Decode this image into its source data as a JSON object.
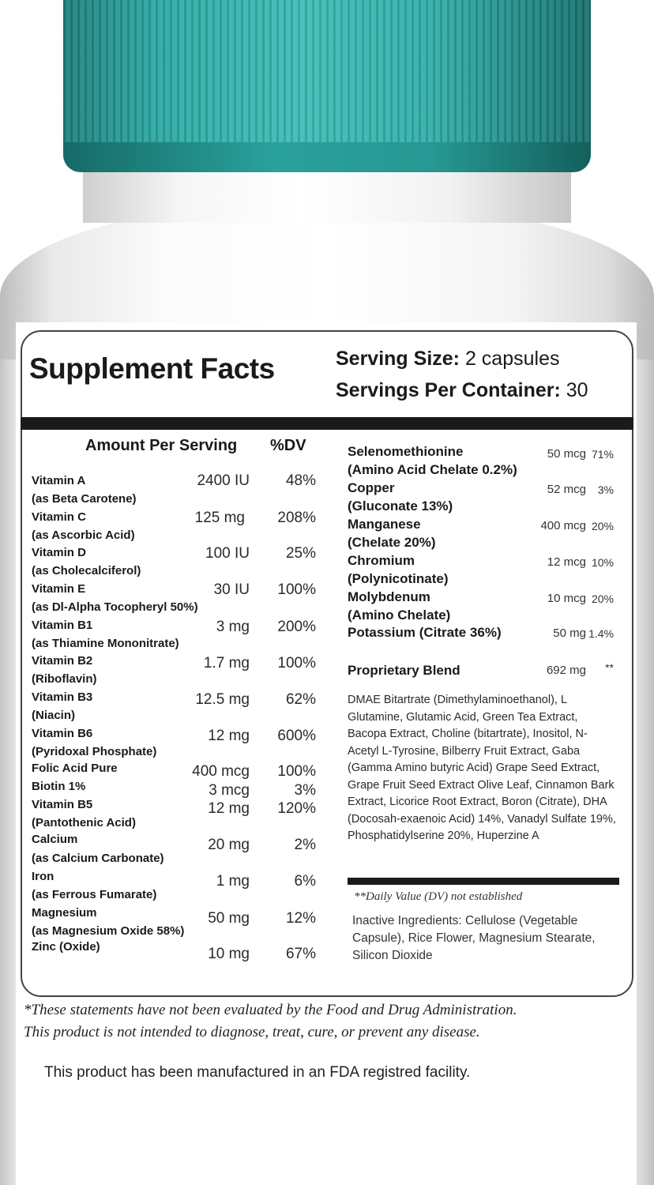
{
  "label": {
    "title": "Supplement Facts",
    "serving_size_label": "Serving Size:",
    "serving_size_value": "2 capsules",
    "servings_label": "Servings Per Container:",
    "servings_value": "30",
    "header_amount": "Amount Per Serving",
    "header_dv": "%DV"
  },
  "left_nutrients": [
    {
      "name": "Vitamin A",
      "sub": "(as Beta Carotene)",
      "amount": "2400 IU",
      "dv": "48%"
    },
    {
      "name": "Vitamin C",
      "sub": "(as Ascorbic Acid)",
      "amount": "125 mg",
      "dv": "208%"
    },
    {
      "name": "Vitamin D",
      "sub": "(as Cholecalciferol)",
      "amount": "100 IU",
      "dv": "25%"
    },
    {
      "name": "Vitamin E",
      "sub": "(as Dl-Alpha Tocopheryl 50%)",
      "amount": "30 IU",
      "dv": "100%"
    },
    {
      "name": "Vitamin B1",
      "sub": "(as Thiamine Mononitrate)",
      "amount": "3 mg",
      "dv": "200%"
    },
    {
      "name": "Vitamin B2",
      "sub": "(Riboflavin)",
      "amount": "1.7 mg",
      "dv": "100%"
    },
    {
      "name": "Vitamin B3",
      "sub": "(Niacin)",
      "amount": "12.5 mg",
      "dv": "62%"
    },
    {
      "name": "Vitamin B6",
      "sub": "(Pyridoxal Phosphate)",
      "amount": "12 mg",
      "dv": "600%"
    },
    {
      "name": "Folic Acid Pure",
      "sub": "",
      "amount": "400 mcg",
      "dv": "100%"
    },
    {
      "name": "Biotin 1%",
      "sub": "",
      "amount": "3 mcg",
      "dv": "3%"
    },
    {
      "name": "Vitamin B5",
      "sub": "(Pantothenic Acid)",
      "amount": "12 mg",
      "dv": "120%"
    },
    {
      "name": "Calcium",
      "sub": "(as Calcium Carbonate)",
      "amount": "20 mg",
      "dv": "2%"
    },
    {
      "name": "Iron",
      "sub": "(as Ferrous Fumarate)",
      "amount": "1 mg",
      "dv": "6%"
    },
    {
      "name": "Magnesium",
      "sub": "(as Magnesium Oxide 58%)",
      "amount": "50 mg",
      "dv": "12%"
    },
    {
      "name": "Zinc (Oxide)",
      "sub": "",
      "amount": "10 mg",
      "dv": "67%"
    }
  ],
  "right_nutrients": [
    {
      "name": "Selenomethionine",
      "sub": "(Amino Acid Chelate 0.2%)",
      "amount": "50 mcg",
      "dv": "71%"
    },
    {
      "name": "Copper",
      "sub": "(Gluconate 13%)",
      "amount": "52 mcg",
      "dv": "3%"
    },
    {
      "name": "Manganese",
      "sub": "(Chelate 20%)",
      "amount": "400 mcg",
      "dv": "20%"
    },
    {
      "name": "Chromium",
      "sub": "(Polynicotinate)",
      "amount": "12 mcg",
      "dv": "10%"
    },
    {
      "name": "Molybdenum",
      "sub": "(Amino Chelate)",
      "amount": "10 mcg",
      "dv": "20%"
    },
    {
      "name": "Potassium (Citrate 36%)",
      "sub": "",
      "amount": "50 mg",
      "dv": "1.4%"
    },
    {
      "name": "Proprietary Blend",
      "sub": "",
      "amount": "692 mg",
      "dv": "**"
    }
  ],
  "blend_ingredients": "DMAE Bitartrate (Dimethylaminoethanol), L Glutamine, Glutamic Acid, Green Tea Extract, Bacopa Extract, Choline (bitartrate), Inositol, N-Acetyl L-Tyrosine, Bilberry Fruit Extract, Gaba (Gamma Amino butyric Acid) Grape Seed Extract, Grape Fruit Seed Extract Olive Leaf, Cinnamon Bark Extract, Licorice Root Extract, Boron (Citrate), DHA (Docosah-exaenoic Acid) 14%, Vanadyl Sulfate 19%, Phosphatidylserine 20%, Huperzine A",
  "dv_note": "**Daily Value (DV) not established",
  "inactive": "Inactive Ingredients: Cellulose (Vegetable Capsule), Rice Flower, Magnesium Stearate, Silicon Dioxide",
  "disclaimer_1": "*These statements have not been evaluated by the Food and Drug Administration.",
  "disclaimer_2": "This product is not intended to diagnose, treat, cure, or prevent any disease.",
  "manufactured": "This product has been manufactured in an FDA registred facility.",
  "colors": {
    "cap": "#2aa8a3",
    "bar": "#1a1a1a",
    "bottle": "#f5f5f5"
  }
}
